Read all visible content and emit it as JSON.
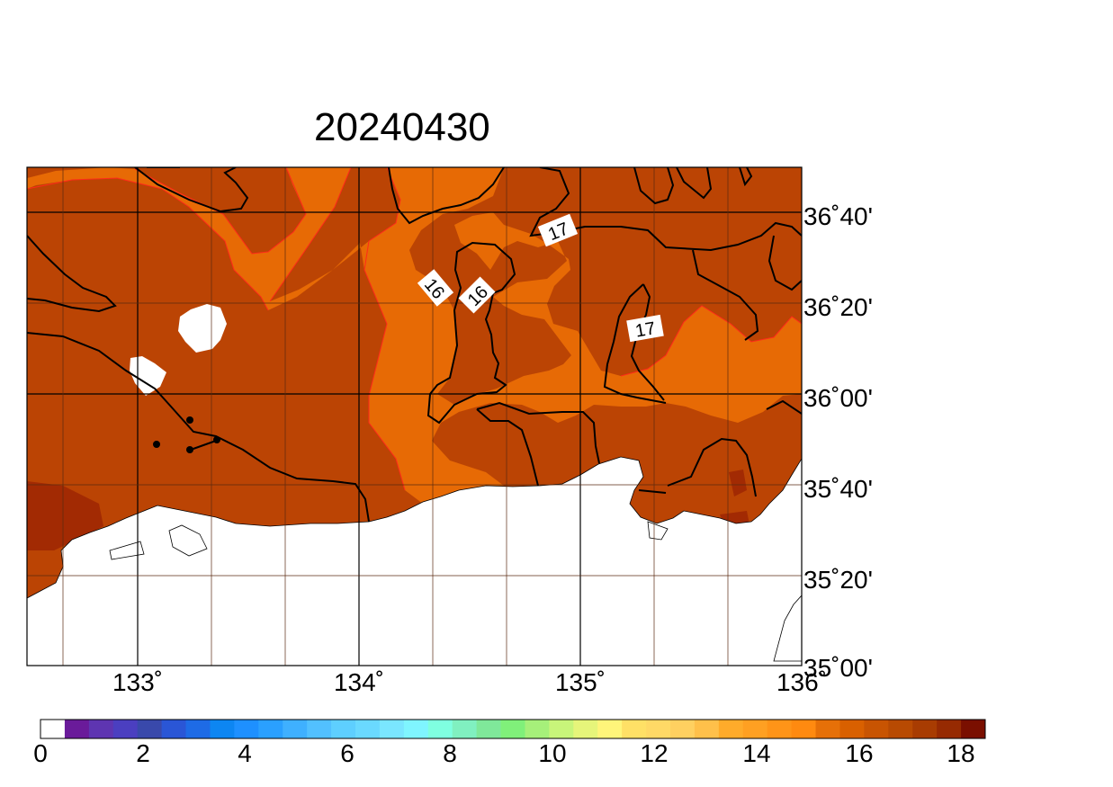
{
  "title": "20240430",
  "map": {
    "lat_labels": [
      "36˚40'",
      "36˚20'",
      "36˚00'",
      "35˚40'",
      "35˚20'",
      "35˚00'"
    ],
    "lon_labels": [
      "133˚",
      "134˚",
      "135˚",
      "136˚"
    ],
    "contour_labels": [
      "16",
      "16",
      "17",
      "17"
    ]
  },
  "colorbar": {
    "tick_labels": [
      "0",
      "2",
      "4",
      "6",
      "8",
      "10",
      "12",
      "14",
      "16",
      "18"
    ],
    "colors": [
      "#ffffff",
      "#6a1b9a",
      "#5e35b1",
      "#4b3fc0",
      "#3949ab",
      "#2a56d6",
      "#1e6be6",
      "#0d86f2",
      "#1e90ff",
      "#2aa0ff",
      "#3fb0ff",
      "#52c0ff",
      "#5ecfff",
      "#6ad9ff",
      "#7ae6ff",
      "#7ff5ff",
      "#7fffe0",
      "#80f0c0",
      "#7fe89a",
      "#80f07a",
      "#a6f07a",
      "#c8f57a",
      "#e6f57a",
      "#fff57a",
      "#ffe066",
      "#ffd966",
      "#ffd060",
      "#ffc04a",
      "#ffab2a",
      "#ffa022",
      "#ff9418",
      "#ff8a10",
      "#e67008",
      "#d96000",
      "#c85402",
      "#b84a02",
      "#a83c02",
      "#962a02",
      "#7a0f00"
    ]
  }
}
